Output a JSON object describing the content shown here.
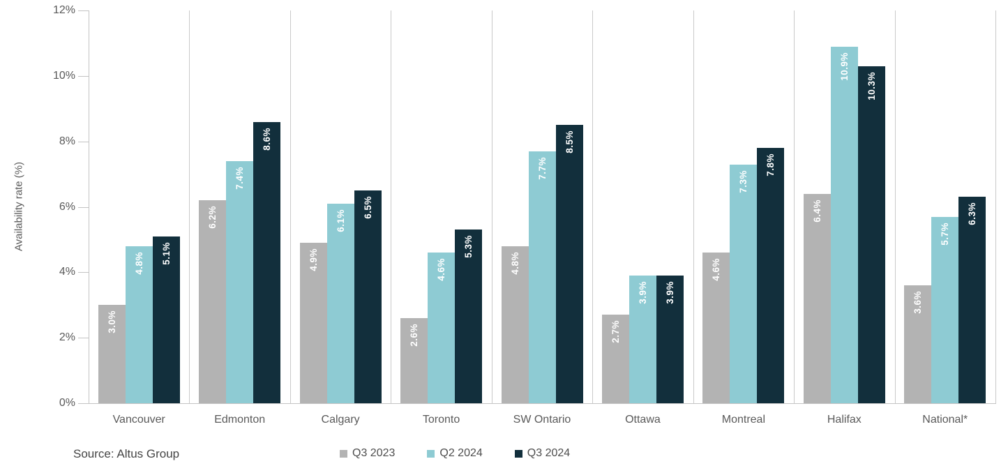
{
  "source": "Source: Altus Group",
  "chart_data": {
    "type": "bar",
    "title": "",
    "xlabel": "",
    "ylabel": "Availability rate (%)",
    "ylim": [
      0,
      12
    ],
    "ytick_step": 2,
    "ytick_suffix": "%",
    "grid": "vertical category separators only",
    "legend_position": "bottom-center",
    "data_labels": "rotated 90deg, white bold, inside top of bars, format X.X%",
    "categories": [
      "Vancouver",
      "Edmonton",
      "Calgary",
      "Toronto",
      "SW Ontario",
      "Ottawa",
      "Montreal",
      "Halifax",
      "National*"
    ],
    "series": [
      {
        "name": "Q3 2023",
        "color": "#b3b3b3",
        "values": [
          3.0,
          6.2,
          4.9,
          2.6,
          4.8,
          2.7,
          4.6,
          6.4,
          3.6
        ]
      },
      {
        "name": "Q2 2024",
        "color": "#8ecbd3",
        "values": [
          4.8,
          7.4,
          6.1,
          4.6,
          7.7,
          3.9,
          7.3,
          10.9,
          5.7
        ]
      },
      {
        "name": "Q3 2024",
        "color": "#122f3c",
        "values": [
          5.1,
          8.6,
          6.5,
          5.3,
          8.5,
          3.9,
          7.8,
          10.3,
          6.3
        ]
      }
    ],
    "colors": {
      "axis_text": "#595959",
      "grid_line": "#c9c9c9",
      "data_label_text": "#ffffff",
      "source_text": "#444444"
    }
  }
}
